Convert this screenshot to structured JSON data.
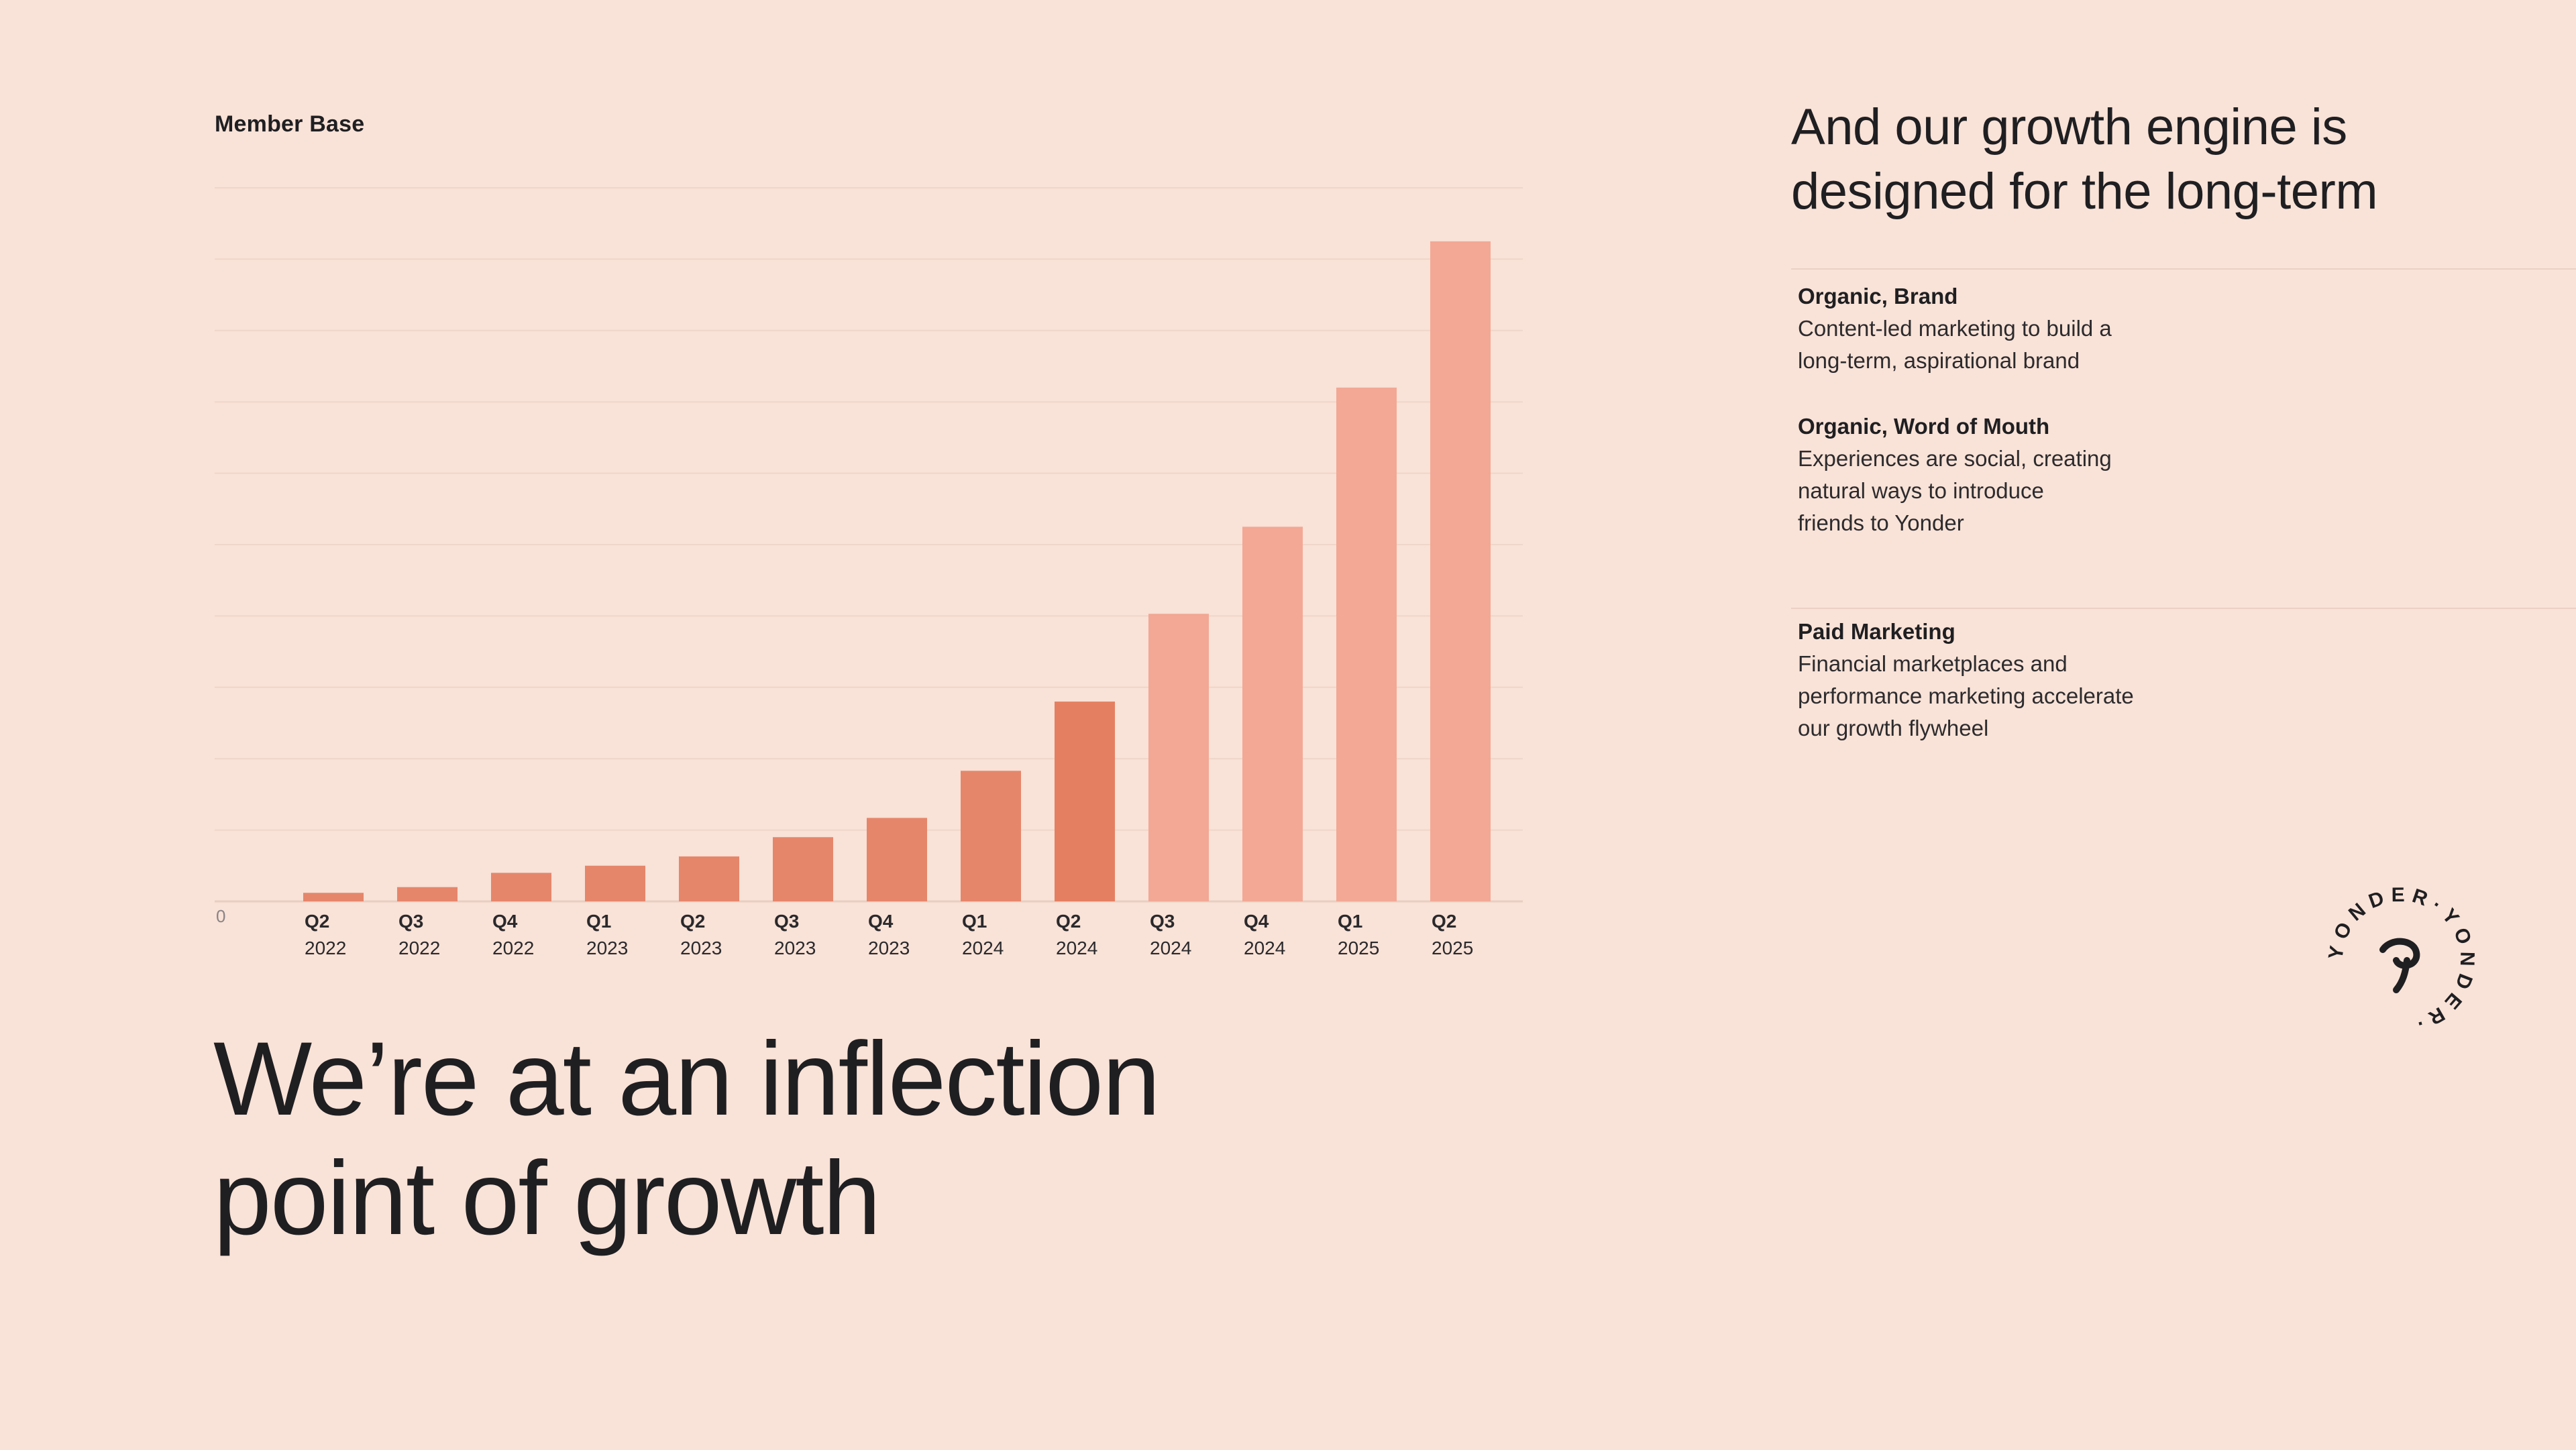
{
  "chart_data": {
    "type": "bar",
    "title": "Member Base",
    "categories": [
      [
        "Q2",
        "2022"
      ],
      [
        "Q3",
        "2022"
      ],
      [
        "Q4",
        "2022"
      ],
      [
        "Q1",
        "2023"
      ],
      [
        "Q2",
        "2023"
      ],
      [
        "Q3",
        "2023"
      ],
      [
        "Q4",
        "2023"
      ],
      [
        "Q1",
        "2024"
      ],
      [
        "Q2",
        "2024"
      ],
      [
        "Q3",
        "2024"
      ],
      [
        "Q4",
        "2024"
      ],
      [
        "Q1",
        "2025"
      ],
      [
        "Q2",
        "2025"
      ]
    ],
    "values": [
      1.2,
      2.0,
      4.0,
      5.0,
      6.3,
      9.0,
      11.7,
      18.3,
      28.0,
      40.3,
      52.5,
      72.0,
      92.5
    ],
    "y_tick_label": "0",
    "ylim": [
      0,
      100
    ],
    "grid": true,
    "colors": {
      "past": "#e5866b",
      "highlight": "#e57f62",
      "projected": "#f2a895"
    },
    "highlight_index": 8,
    "projected_from_index": 9
  },
  "headline": {
    "line1": "We’re at an inflection",
    "line2": "point of growth"
  },
  "right": {
    "title_line1": "And our growth engine is",
    "title_line2": "designed for the long-term",
    "items": [
      {
        "title": "Organic, Brand",
        "desc": [
          "Content-led marketing to build a",
          "long-term, aspirational brand"
        ]
      },
      {
        "title": "Organic, Word of Mouth",
        "desc": [
          "Experiences are social, creating",
          "natural ways to introduce",
          "friends to Yonder"
        ]
      },
      {
        "title": "Paid Marketing",
        "desc": [
          "Financial marketplaces and",
          "performance marketing accelerate",
          "our growth flywheel"
        ]
      }
    ]
  },
  "logo": {
    "ring_text": "YONDER·YONDER·",
    "icon": "yonder-swirl-icon"
  },
  "colors": {
    "background": "#f9e2d7",
    "text": "#1f1f22",
    "gridline": "#efd6ca"
  }
}
